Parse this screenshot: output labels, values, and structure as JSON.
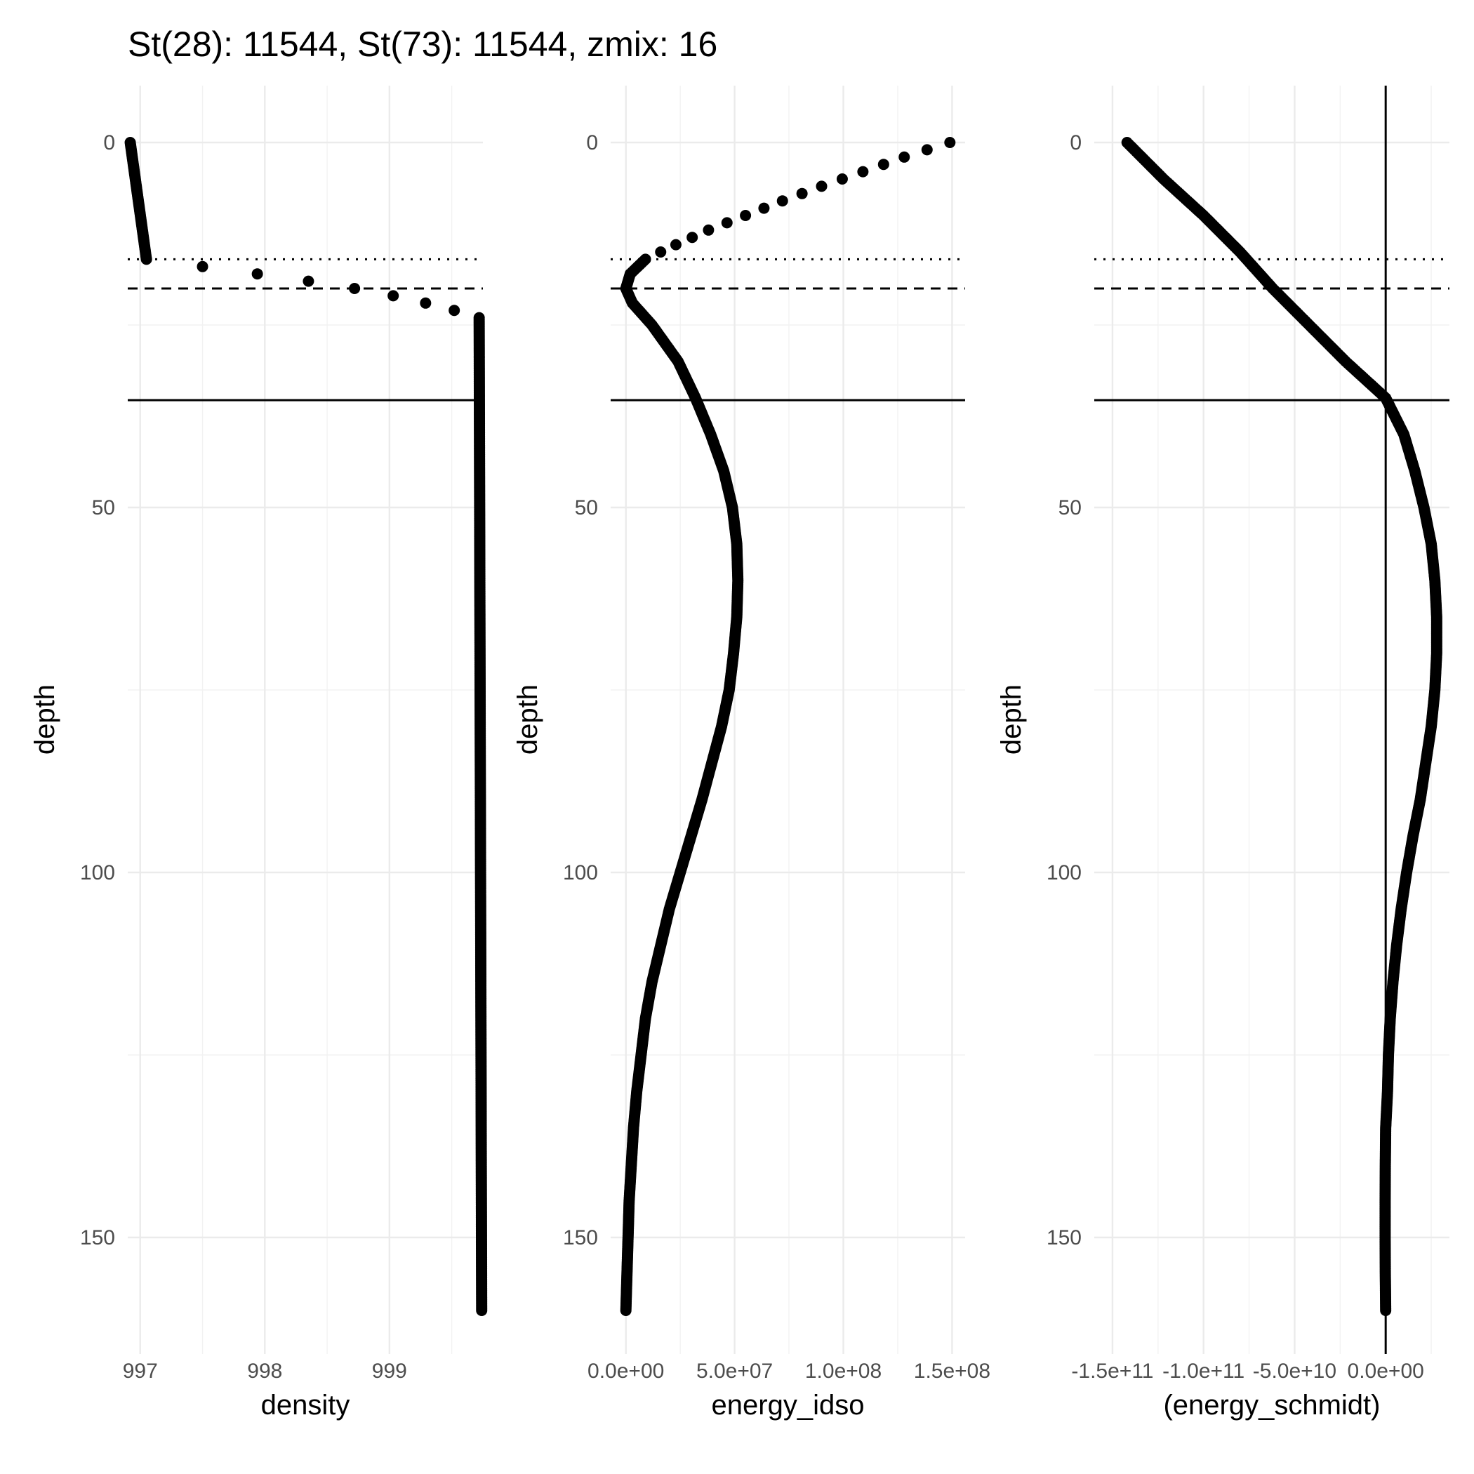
{
  "title": "St(28): 11544, St(73): 11544, zmix: 16",
  "chart_data": [
    {
      "type": "scatter",
      "xlabel": "density",
      "ylabel": "depth",
      "x_ticks": [
        {
          "value": 997,
          "label": "997"
        },
        {
          "value": 998,
          "label": "998"
        },
        {
          "value": 999,
          "label": "999"
        }
      ],
      "y_ticks": [
        {
          "value": 0,
          "label": "0"
        },
        {
          "value": 50,
          "label": "50"
        },
        {
          "value": 100,
          "label": "100"
        },
        {
          "value": 150,
          "label": "150"
        }
      ],
      "xlim": [
        996.9,
        999.75
      ],
      "ylim": [
        0,
        160
      ],
      "y_reversed": true,
      "grid": true,
      "reference_lines": {
        "dotted_depth": 16,
        "dashed_depth": 20,
        "solid_depth": 35.3
      },
      "series_segments": [
        {
          "depth_from": 0,
          "depth_to": 16,
          "x_from": 996.92,
          "x_to": 997.05
        },
        {
          "depth_from": 24,
          "depth_to": 160,
          "x_from": 999.72,
          "x_to": 999.74
        }
      ],
      "points": [
        {
          "x": 997.5,
          "y": 17
        },
        {
          "x": 997.94,
          "y": 18
        },
        {
          "x": 998.35,
          "y": 19
        },
        {
          "x": 998.72,
          "y": 20
        },
        {
          "x": 999.03,
          "y": 21
        },
        {
          "x": 999.29,
          "y": 22
        },
        {
          "x": 999.52,
          "y": 23
        }
      ]
    },
    {
      "type": "scatter",
      "xlabel": "energy_idso",
      "ylabel": "depth",
      "x_ticks": [
        {
          "value": 0,
          "label": "0.0e+00"
        },
        {
          "value": 50000000,
          "label": "5.0e+07"
        },
        {
          "value": 100000000,
          "label": "1.0e+08"
        },
        {
          "value": 150000000,
          "label": "1.5e+08"
        }
      ],
      "y_ticks": [
        {
          "value": 0,
          "label": "0"
        },
        {
          "value": 50,
          "label": "50"
        },
        {
          "value": 100,
          "label": "100"
        },
        {
          "value": 150,
          "label": "150"
        }
      ],
      "xlim": [
        -7000000,
        156000000
      ],
      "ylim": [
        0,
        160
      ],
      "y_reversed": true,
      "grid": true,
      "reference_lines": {
        "dotted_depth": 16,
        "dashed_depth": 20,
        "solid_depth": 35.3
      },
      "profile": [
        {
          "depth": 0,
          "x": 149000000
        },
        {
          "depth": 2,
          "x": 128000000
        },
        {
          "depth": 4,
          "x": 109000000
        },
        {
          "depth": 6,
          "x": 90000000
        },
        {
          "depth": 8,
          "x": 72000000
        },
        {
          "depth": 10,
          "x": 55000000
        },
        {
          "depth": 12,
          "x": 38000000
        },
        {
          "depth": 14,
          "x": 23000000
        },
        {
          "depth": 16,
          "x": 9000000
        },
        {
          "depth": 18,
          "x": 2000000
        },
        {
          "depth": 20,
          "x": 0
        },
        {
          "depth": 22,
          "x": 3000000
        },
        {
          "depth": 25,
          "x": 12000000
        },
        {
          "depth": 30,
          "x": 24000000
        },
        {
          "depth": 35,
          "x": 32000000
        },
        {
          "depth": 40,
          "x": 39000000
        },
        {
          "depth": 45,
          "x": 45000000
        },
        {
          "depth": 50,
          "x": 49000000
        },
        {
          "depth": 55,
          "x": 51000000
        },
        {
          "depth": 60,
          "x": 51500000
        },
        {
          "depth": 65,
          "x": 51000000
        },
        {
          "depth": 70,
          "x": 49500000
        },
        {
          "depth": 75,
          "x": 47500000
        },
        {
          "depth": 80,
          "x": 44000000
        },
        {
          "depth": 85,
          "x": 39500000
        },
        {
          "depth": 90,
          "x": 35000000
        },
        {
          "depth": 95,
          "x": 30000000
        },
        {
          "depth": 100,
          "x": 25000000
        },
        {
          "depth": 105,
          "x": 20000000
        },
        {
          "depth": 110,
          "x": 16000000
        },
        {
          "depth": 115,
          "x": 12000000
        },
        {
          "depth": 120,
          "x": 9000000
        },
        {
          "depth": 125,
          "x": 7000000
        },
        {
          "depth": 130,
          "x": 5000000
        },
        {
          "depth": 135,
          "x": 3500000
        },
        {
          "depth": 140,
          "x": 2500000
        },
        {
          "depth": 145,
          "x": 1500000
        },
        {
          "depth": 150,
          "x": 1000000
        },
        {
          "depth": 155,
          "x": 500000
        },
        {
          "depth": 160,
          "x": 0
        }
      ]
    },
    {
      "type": "scatter",
      "xlabel": "(energy_schmidt)",
      "ylabel": "depth",
      "x_ticks": [
        {
          "value": -150000000000,
          "label": "-1.5e+11"
        },
        {
          "value": -100000000000,
          "label": "-1.0e+11"
        },
        {
          "value": -50000000000,
          "label": "-5.0e+10"
        },
        {
          "value": 0,
          "label": "0.0e+00"
        }
      ],
      "y_ticks": [
        {
          "value": 0,
          "label": "0"
        },
        {
          "value": 50,
          "label": "50"
        },
        {
          "value": 100,
          "label": "100"
        },
        {
          "value": 150,
          "label": "150"
        }
      ],
      "xlim": [
        -160000000000,
        35000000000
      ],
      "ylim": [
        0,
        160
      ],
      "y_reversed": true,
      "grid": true,
      "reference_lines": {
        "dotted_depth": 16,
        "dashed_depth": 20,
        "solid_depth": 35.3,
        "vertical_x": 0
      },
      "profile": [
        {
          "depth": 0,
          "x": -142000000000
        },
        {
          "depth": 5,
          "x": -122000000000
        },
        {
          "depth": 10,
          "x": -100000000000
        },
        {
          "depth": 15,
          "x": -80000000000
        },
        {
          "depth": 20,
          "x": -62000000000
        },
        {
          "depth": 25,
          "x": -42000000000
        },
        {
          "depth": 30,
          "x": -22000000000
        },
        {
          "depth": 35,
          "x": 0
        },
        {
          "depth": 40,
          "x": 10000000000
        },
        {
          "depth": 45,
          "x": 16000000000
        },
        {
          "depth": 50,
          "x": 21000000000
        },
        {
          "depth": 55,
          "x": 25000000000
        },
        {
          "depth": 60,
          "x": 27000000000
        },
        {
          "depth": 65,
          "x": 28000000000
        },
        {
          "depth": 70,
          "x": 28000000000
        },
        {
          "depth": 75,
          "x": 27000000000
        },
        {
          "depth": 80,
          "x": 25000000000
        },
        {
          "depth": 85,
          "x": 22000000000
        },
        {
          "depth": 90,
          "x": 19000000000
        },
        {
          "depth": 95,
          "x": 15000000000
        },
        {
          "depth": 100,
          "x": 11500000000
        },
        {
          "depth": 105,
          "x": 8500000000
        },
        {
          "depth": 110,
          "x": 6000000000
        },
        {
          "depth": 115,
          "x": 4000000000
        },
        {
          "depth": 120,
          "x": 2500000000
        },
        {
          "depth": 125,
          "x": 1500000000
        },
        {
          "depth": 130,
          "x": 1000000000
        },
        {
          "depth": 135,
          "x": 0
        },
        {
          "depth": 140,
          "x": -200000000
        },
        {
          "depth": 145,
          "x": -300000000
        },
        {
          "depth": 150,
          "x": -300000000
        },
        {
          "depth": 155,
          "x": -200000000
        },
        {
          "depth": 160,
          "x": 0
        }
      ]
    }
  ]
}
